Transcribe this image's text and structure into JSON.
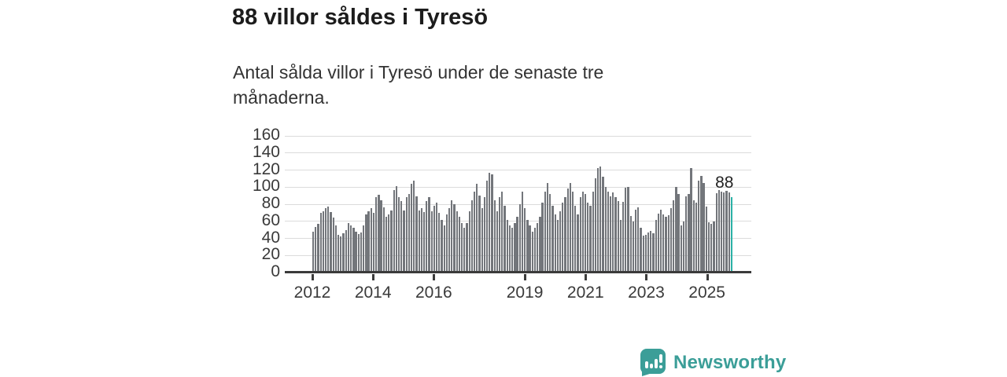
{
  "header": {
    "title": "88 villor såldes i Tyresö",
    "subtitle": "Antal sålda villor i Tyresö under de senaste tre månaderna."
  },
  "chart_data": {
    "type": "bar",
    "title": "88 villor såldes i Tyresö",
    "xlabel": "",
    "ylabel": "",
    "x_unit": "month",
    "x_start": "2012-01",
    "x_end": "2025-11",
    "ylim": [
      0,
      160
    ],
    "yticks": [
      0,
      20,
      40,
      60,
      80,
      100,
      120,
      140,
      160
    ],
    "xticks": [
      2012,
      2014,
      2016,
      2019,
      2021,
      2023,
      2025
    ],
    "grid": true,
    "legend_position": "none",
    "bar_color": "#73767b",
    "highlight_color": "#2bb1a6",
    "highlight_last": true,
    "last_value_label": "88",
    "values": [
      48,
      53,
      57,
      70,
      72,
      75,
      77,
      71,
      64,
      55,
      44,
      42,
      46,
      50,
      58,
      55,
      52,
      48,
      45,
      47,
      55,
      68,
      72,
      75,
      70,
      88,
      91,
      85,
      76,
      65,
      68,
      73,
      97,
      101,
      88,
      84,
      73,
      88,
      92,
      104,
      108,
      89,
      73,
      75,
      71,
      84,
      88,
      72,
      78,
      82,
      70,
      62,
      55,
      68,
      75,
      85,
      80,
      72,
      65,
      58,
      52,
      58,
      72,
      85,
      95,
      104,
      90,
      75,
      88,
      108,
      117,
      115,
      85,
      72,
      88,
      95,
      78,
      62,
      55,
      52,
      58,
      65,
      80,
      95,
      75,
      62,
      55,
      48,
      52,
      58,
      65,
      82,
      95,
      105,
      92,
      78,
      68,
      62,
      72,
      82,
      88,
      98,
      105,
      95,
      78,
      68,
      88,
      95,
      92,
      82,
      78,
      95,
      110,
      122,
      124,
      112,
      100,
      95,
      89,
      94,
      88,
      84,
      62,
      83,
      99,
      100,
      66,
      60,
      74,
      76,
      52,
      43,
      44,
      47,
      49,
      46,
      62,
      69,
      74,
      68,
      65,
      67,
      75,
      85,
      100,
      92,
      55,
      60,
      89,
      92,
      122,
      85,
      82,
      108,
      113,
      105,
      77,
      59,
      57,
      60,
      93,
      97,
      95,
      94,
      96,
      94,
      88
    ]
  },
  "footer": {
    "brand": "Newsworthy",
    "brand_color": "#3b9e98",
    "logo_icon": "newsworthy-bubble-chart-icon"
  }
}
